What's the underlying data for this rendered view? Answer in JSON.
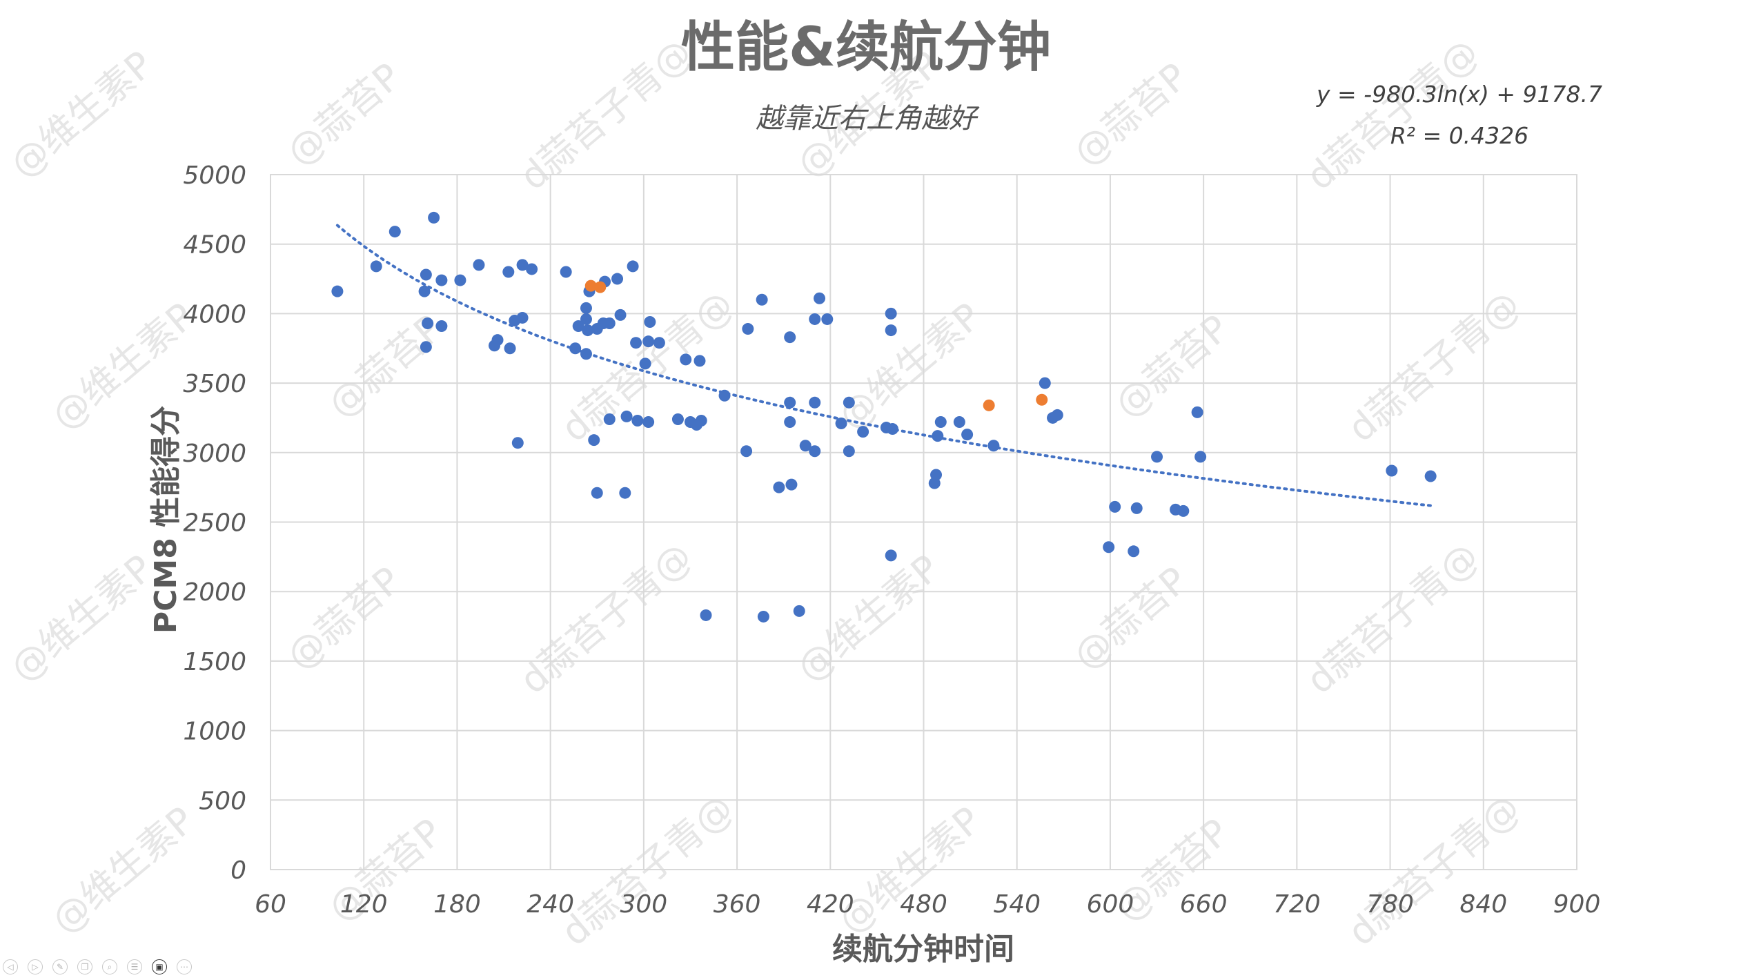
{
  "chart_data": {
    "type": "scatter",
    "title": "性能&续航分钟",
    "subtitle": "越靠近右上角越好",
    "xlabel": "续航分钟时间",
    "ylabel": "PCM8 性能得分",
    "xlim": [
      60,
      900
    ],
    "ylim": [
      0,
      5000
    ],
    "x_ticks": [
      60,
      120,
      180,
      240,
      300,
      360,
      420,
      480,
      540,
      600,
      660,
      720,
      780,
      840,
      900
    ],
    "y_ticks": [
      0,
      500,
      1000,
      1500,
      2000,
      2500,
      3000,
      3500,
      4000,
      4500,
      5000
    ],
    "grid": true,
    "trendline": {
      "type": "logarithmic",
      "equation": "y = -980.3ln(x) + 9178.7",
      "r_squared": "R² = 0.4326",
      "a": -980.3,
      "b": 9178.7,
      "x_range": [
        103,
        806
      ],
      "color": "#4472c4"
    },
    "series": [
      {
        "color": "#4472c4",
        "points": [
          [
            103,
            4160
          ],
          [
            128,
            4340
          ],
          [
            140,
            4590
          ],
          [
            165,
            4690
          ],
          [
            160,
            4280
          ],
          [
            170,
            4240
          ],
          [
            182,
            4240
          ],
          [
            194,
            4350
          ],
          [
            213,
            4300
          ],
          [
            222,
            4350
          ],
          [
            228,
            4320
          ],
          [
            159,
            4160
          ],
          [
            161,
            3930
          ],
          [
            170,
            3910
          ],
          [
            160,
            3760
          ],
          [
            204,
            3770
          ],
          [
            206,
            3810
          ],
          [
            214,
            3750
          ],
          [
            217,
            3950
          ],
          [
            222,
            3970
          ],
          [
            250,
            4300
          ],
          [
            265,
            4160
          ],
          [
            263,
            4040
          ],
          [
            263,
            3960
          ],
          [
            258,
            3910
          ],
          [
            264,
            3880
          ],
          [
            270,
            3890
          ],
          [
            274,
            3930
          ],
          [
            278,
            3930
          ],
          [
            285,
            3990
          ],
          [
            275,
            4230
          ],
          [
            283,
            4250
          ],
          [
            293,
            4340
          ],
          [
            256,
            3750
          ],
          [
            263,
            3710
          ],
          [
            301,
            3640
          ],
          [
            303,
            3800
          ],
          [
            304,
            3940
          ],
          [
            310,
            3790
          ],
          [
            295,
            3790
          ],
          [
            327,
            3670
          ],
          [
            336,
            3660
          ],
          [
            219,
            3070
          ],
          [
            268,
            3090
          ],
          [
            270,
            2710
          ],
          [
            288,
            2710
          ],
          [
            278,
            3240
          ],
          [
            289,
            3260
          ],
          [
            296,
            3230
          ],
          [
            303,
            3220
          ],
          [
            322,
            3240
          ],
          [
            330,
            3220
          ],
          [
            337,
            3230
          ],
          [
            334,
            3200
          ],
          [
            352,
            3410
          ],
          [
            367,
            3890
          ],
          [
            376,
            4100
          ],
          [
            394,
            3830
          ],
          [
            410,
            3960
          ],
          [
            413,
            4110
          ],
          [
            418,
            3960
          ],
          [
            366,
            3010
          ],
          [
            387,
            2750
          ],
          [
            395,
            2770
          ],
          [
            394,
            3360
          ],
          [
            394,
            3220
          ],
          [
            410,
            3360
          ],
          [
            404,
            3050
          ],
          [
            410,
            3010
          ],
          [
            427,
            3210
          ],
          [
            432,
            3360
          ],
          [
            432,
            3010
          ],
          [
            441,
            3150
          ],
          [
            456,
            3180
          ],
          [
            460,
            3170
          ],
          [
            459,
            4000
          ],
          [
            459,
            3880
          ],
          [
            487,
            2780
          ],
          [
            488,
            2840
          ],
          [
            489,
            3120
          ],
          [
            491,
            3220
          ],
          [
            503,
            3220
          ],
          [
            508,
            3130
          ],
          [
            525,
            3050
          ],
          [
            558,
            3500
          ],
          [
            563,
            3250
          ],
          [
            566,
            3270
          ],
          [
            459,
            2260
          ],
          [
            340,
            1830
          ],
          [
            377,
            1820
          ],
          [
            400,
            1860
          ],
          [
            599,
            2320
          ],
          [
            603,
            2610
          ],
          [
            615,
            2290
          ],
          [
            617,
            2600
          ],
          [
            630,
            2970
          ],
          [
            642,
            2590
          ],
          [
            647,
            2580
          ],
          [
            656,
            3290
          ],
          [
            658,
            2970
          ],
          [
            781,
            2870
          ],
          [
            806,
            2830
          ]
        ]
      },
      {
        "color": "#ed7d31",
        "points": [
          [
            266,
            4200
          ],
          [
            272,
            4190
          ],
          [
            522,
            3340
          ],
          [
            556,
            3380
          ]
        ]
      }
    ]
  },
  "watermarks": [
    "@维生素P",
    "@蒜苔P",
    "d蒜苔子青@"
  ],
  "toolbar": {
    "buttons": [
      {
        "icon": "prev-icon",
        "glyph": "◁",
        "active": false
      },
      {
        "icon": "next-icon",
        "glyph": "▷",
        "active": false
      },
      {
        "icon": "pen-icon",
        "glyph": "✎",
        "active": false
      },
      {
        "icon": "copy-icon",
        "glyph": "❐",
        "active": false
      },
      {
        "icon": "zoom-icon",
        "glyph": "⌕",
        "active": false
      },
      {
        "icon": "list-icon",
        "glyph": "☰",
        "active": false
      },
      {
        "icon": "video-icon",
        "glyph": "▣",
        "active": true
      },
      {
        "icon": "more-icon",
        "glyph": "⋯",
        "active": false
      }
    ]
  }
}
